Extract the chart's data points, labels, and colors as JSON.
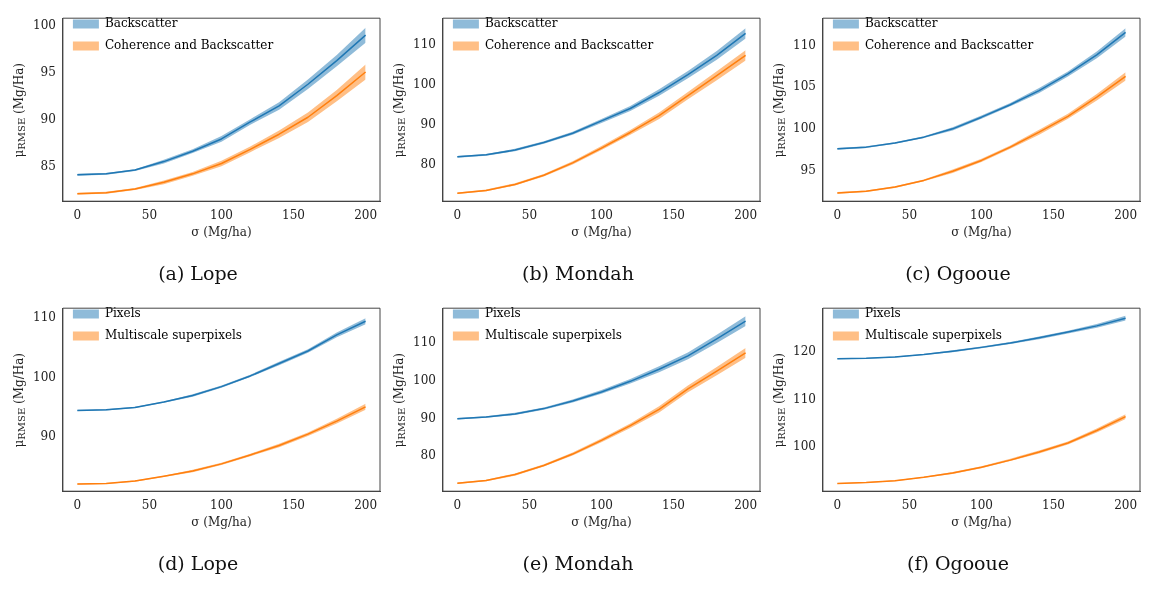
{
  "chart_data": [
    {
      "type": "line",
      "title": "(a) Lope",
      "xlabel": "σ (Mg/ha)",
      "ylabel": "μ$_{RMSE}$ (Mg/Ha)",
      "x": [
        0,
        20,
        40,
        60,
        80,
        100,
        120,
        140,
        160,
        180,
        200
      ],
      "xlim": [
        -10,
        210
      ],
      "xticks": [
        0,
        50,
        100,
        150,
        200
      ],
      "ylim": [
        81.4,
        100.8
      ],
      "yticks": [
        85,
        90,
        95,
        100
      ],
      "grid": false,
      "legend": "top left",
      "series": [
        {
          "name": "Backscatter",
          "color": "#1f77b4",
          "values": [
            84.2,
            84.3,
            84.7,
            85.6,
            86.7,
            88.0,
            89.8,
            91.5,
            93.8,
            96.3,
            99.0
          ],
          "lower": [
            84.1,
            84.2,
            84.6,
            85.4,
            86.5,
            87.7,
            89.5,
            91.1,
            93.3,
            95.7,
            98.2
          ],
          "upper": [
            84.3,
            84.4,
            84.8,
            85.8,
            86.9,
            88.3,
            90.1,
            91.9,
            94.3,
            96.9,
            99.8
          ]
        },
        {
          "name": "Coherence and Backscatter",
          "color": "#ff7f0e",
          "values": [
            82.2,
            82.3,
            82.7,
            83.4,
            84.3,
            85.4,
            86.9,
            88.5,
            90.3,
            92.6,
            95.1
          ],
          "lower": [
            82.1,
            82.2,
            82.6,
            83.2,
            84.1,
            85.1,
            86.6,
            88.1,
            89.8,
            92.0,
            94.3
          ],
          "upper": [
            82.3,
            82.4,
            82.8,
            83.6,
            84.5,
            85.7,
            87.2,
            88.9,
            90.8,
            93.2,
            95.9
          ]
        }
      ]
    },
    {
      "type": "line",
      "title": "(b) Mondah",
      "xlabel": "σ (Mg/ha)",
      "ylabel": "μ$_{RMSE}$ (Mg/Ha)",
      "x": [
        0,
        20,
        40,
        60,
        80,
        100,
        120,
        140,
        160,
        180,
        200
      ],
      "xlim": [
        -10,
        210
      ],
      "xticks": [
        0,
        50,
        100,
        150,
        200
      ],
      "ylim": [
        70.8,
        116.6
      ],
      "yticks": [
        80,
        90,
        100,
        110
      ],
      "grid": false,
      "legend": "top left",
      "series": [
        {
          "name": "Backscatter",
          "color": "#1f77b4",
          "values": [
            81.9,
            82.4,
            83.6,
            85.5,
            87.8,
            90.9,
            94.0,
            98.0,
            102.5,
            107.3,
            112.8
          ],
          "lower": [
            81.7,
            82.2,
            83.3,
            85.2,
            87.4,
            90.4,
            93.4,
            97.2,
            101.6,
            106.2,
            111.5
          ],
          "upper": [
            82.1,
            82.6,
            83.9,
            85.8,
            88.2,
            91.4,
            94.6,
            98.8,
            103.4,
            108.4,
            114.1
          ]
        },
        {
          "name": "Coherence and Backscatter",
          "color": "#ff7f0e",
          "values": [
            72.8,
            73.5,
            75.0,
            77.3,
            80.4,
            84.1,
            88.0,
            92.2,
            97.2,
            102.2,
            107.3
          ],
          "lower": [
            72.6,
            73.3,
            74.7,
            77.0,
            80.0,
            83.6,
            87.4,
            91.4,
            96.3,
            101.1,
            106.0
          ],
          "upper": [
            73.0,
            73.7,
            75.3,
            77.6,
            80.8,
            84.6,
            88.6,
            93.0,
            98.1,
            103.3,
            108.6
          ]
        }
      ]
    },
    {
      "type": "line",
      "title": "(c) Ogooue",
      "xlabel": "σ (Mg/ha)",
      "ylabel": "μ$_{RMSE}$ (Mg/Ha)",
      "x": [
        0,
        20,
        40,
        60,
        80,
        100,
        120,
        140,
        160,
        180,
        200
      ],
      "xlim": [
        -10,
        210
      ],
      "xticks": [
        0,
        50,
        100,
        150,
        200
      ],
      "ylim": [
        91.3,
        113.3
      ],
      "yticks": [
        95,
        100,
        105,
        110
      ],
      "grid": false,
      "legend": "top left",
      "series": [
        {
          "name": "Backscatter",
          "color": "#1f77b4",
          "values": [
            97.6,
            97.8,
            98.3,
            99.0,
            100.0,
            101.4,
            102.9,
            104.6,
            106.6,
            108.9,
            111.6
          ],
          "lower": [
            97.5,
            97.7,
            98.2,
            98.9,
            99.8,
            101.2,
            102.7,
            104.3,
            106.3,
            108.5,
            111.1
          ],
          "upper": [
            97.7,
            97.9,
            98.4,
            99.1,
            100.2,
            101.6,
            103.1,
            104.9,
            106.9,
            109.3,
            112.1
          ]
        },
        {
          "name": "Coherence and Backscatter",
          "color": "#ff7f0e",
          "values": [
            92.3,
            92.5,
            93.0,
            93.8,
            94.9,
            96.2,
            97.8,
            99.6,
            101.5,
            103.8,
            106.3
          ],
          "lower": [
            92.2,
            92.4,
            92.9,
            93.7,
            94.7,
            96.0,
            97.6,
            99.3,
            101.2,
            103.4,
            105.8
          ],
          "upper": [
            92.4,
            92.6,
            93.1,
            93.9,
            95.1,
            96.4,
            98.0,
            99.9,
            101.8,
            104.2,
            106.8
          ]
        }
      ]
    },
    {
      "type": "line",
      "title": "(d) Lope",
      "xlabel": "σ (Mg/ha)",
      "ylabel": "μ$_{RMSE}$ (Mg/Ha)",
      "x": [
        0,
        20,
        40,
        60,
        80,
        100,
        120,
        140,
        160,
        180,
        200
      ],
      "xlim": [
        -10,
        210
      ],
      "xticks": [
        0,
        50,
        100,
        150,
        200
      ],
      "ylim": [
        80.9,
        111.7
      ],
      "yticks": [
        90,
        100,
        110
      ],
      "grid": false,
      "legend": "top left",
      "series": [
        {
          "name": "Pixels",
          "color": "#1f77b4",
          "values": [
            94.5,
            94.6,
            95.0,
            95.9,
            97.0,
            98.5,
            100.3,
            102.4,
            104.5,
            107.2,
            109.5
          ],
          "lower": [
            94.4,
            94.5,
            94.9,
            95.8,
            96.8,
            98.3,
            100.1,
            102.1,
            104.2,
            106.8,
            109.0
          ],
          "upper": [
            94.6,
            94.7,
            95.1,
            96.0,
            97.2,
            98.7,
            100.5,
            102.7,
            104.8,
            107.6,
            110.0
          ]
        },
        {
          "name": "Multiscale superpixels",
          "color": "#ff7f0e",
          "values": [
            82.1,
            82.2,
            82.6,
            83.4,
            84.3,
            85.5,
            87.0,
            88.6,
            90.5,
            92.7,
            95.1
          ],
          "lower": [
            82.0,
            82.1,
            82.5,
            83.3,
            84.1,
            85.3,
            86.8,
            88.3,
            90.2,
            92.3,
            94.6
          ],
          "upper": [
            82.2,
            82.3,
            82.7,
            83.5,
            84.5,
            85.7,
            87.2,
            88.9,
            90.8,
            93.1,
            95.6
          ]
        }
      ]
    },
    {
      "type": "line",
      "title": "(e) Mondah",
      "xlabel": "σ (Mg/ha)",
      "ylabel": "μ$_{RMSE}$ (Mg/Ha)",
      "x": [
        0,
        20,
        40,
        60,
        80,
        100,
        120,
        140,
        160,
        180,
        200
      ],
      "xlim": [
        -10,
        210
      ],
      "xticks": [
        0,
        50,
        100,
        150,
        200
      ],
      "ylim": [
        70.8,
        119.1
      ],
      "yticks": [
        80,
        90,
        100,
        110
      ],
      "grid": false,
      "legend": "top left",
      "series": [
        {
          "name": "Pixels",
          "color": "#1f77b4",
          "values": [
            89.9,
            90.4,
            91.2,
            92.6,
            94.6,
            97.0,
            99.8,
            103.0,
            106.5,
            111.0,
            115.7
          ],
          "lower": [
            89.7,
            90.2,
            90.9,
            92.3,
            94.2,
            96.5,
            99.2,
            102.2,
            105.6,
            109.9,
            114.4
          ],
          "upper": [
            90.1,
            90.6,
            91.5,
            92.9,
            95.0,
            97.5,
            100.4,
            103.8,
            107.4,
            112.1,
            117.0
          ]
        },
        {
          "name": "Multiscale superpixels",
          "color": "#ff7f0e",
          "values": [
            72.9,
            73.6,
            75.2,
            77.6,
            80.6,
            84.2,
            88.1,
            92.4,
            97.8,
            102.5,
            107.3
          ],
          "lower": [
            72.7,
            73.4,
            74.9,
            77.3,
            80.2,
            83.7,
            87.5,
            91.6,
            96.9,
            101.4,
            106.0
          ],
          "upper": [
            73.1,
            73.8,
            75.5,
            77.9,
            81.0,
            84.7,
            88.7,
            93.2,
            98.7,
            103.6,
            108.6
          ]
        }
      ]
    },
    {
      "type": "line",
      "title": "(f) Ogooue",
      "xlabel": "σ (Mg/ha)",
      "ylabel": "μ$_{RMSE}$ (Mg/Ha)",
      "x": [
        0,
        20,
        40,
        60,
        80,
        100,
        120,
        140,
        160,
        180,
        200
      ],
      "xlim": [
        -10,
        210
      ],
      "xticks": [
        0,
        50,
        100,
        150,
        200
      ],
      "ylim": [
        90.8,
        129.1
      ],
      "yticks": [
        100,
        110,
        120
      ],
      "grid": false,
      "legend": "top left",
      "series": [
        {
          "name": "Pixels",
          "color": "#1f77b4",
          "values": [
            118.5,
            118.6,
            118.9,
            119.4,
            120.1,
            120.9,
            121.8,
            122.9,
            124.1,
            125.4,
            127.0
          ],
          "lower": [
            118.4,
            118.5,
            118.8,
            119.3,
            119.9,
            120.7,
            121.6,
            122.6,
            123.8,
            125.0,
            126.5
          ],
          "upper": [
            118.6,
            118.7,
            119.0,
            119.5,
            120.3,
            121.1,
            122.0,
            123.2,
            124.4,
            125.8,
            127.5
          ]
        },
        {
          "name": "Multiscale superpixels",
          "color": "#ff7f0e",
          "values": [
            92.4,
            92.6,
            93.0,
            93.7,
            94.6,
            95.8,
            97.3,
            99.0,
            100.9,
            103.5,
            106.4
          ],
          "lower": [
            92.3,
            92.5,
            92.9,
            93.6,
            94.4,
            95.6,
            97.1,
            98.7,
            100.6,
            103.1,
            105.9
          ],
          "upper": [
            92.5,
            92.7,
            93.1,
            93.8,
            94.8,
            96.0,
            97.6,
            99.3,
            101.2,
            103.9,
            106.9
          ]
        }
      ]
    }
  ]
}
